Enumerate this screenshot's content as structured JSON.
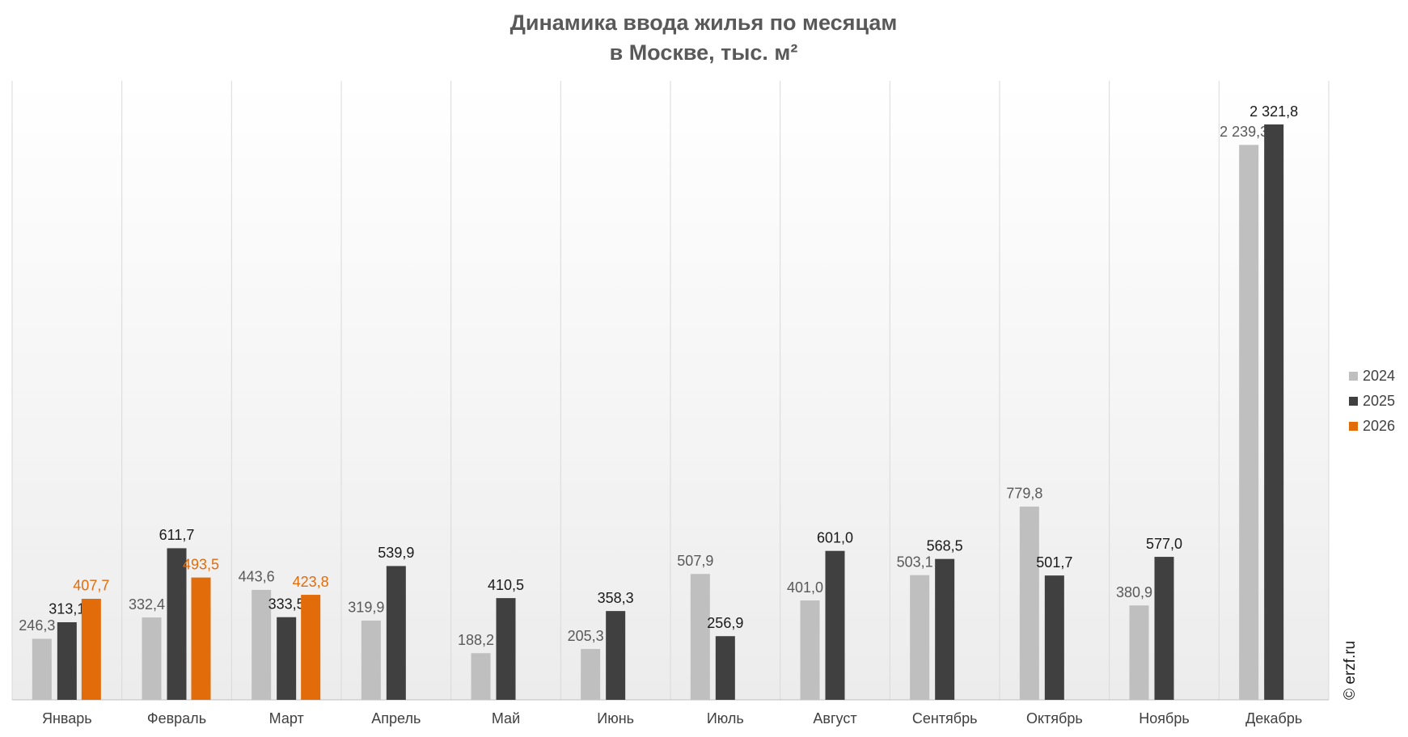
{
  "chart_data": {
    "type": "bar",
    "title": [
      "Динамика ввода жилья по месяцам",
      "в Москве, тыс. м²"
    ],
    "categories": [
      "Январь",
      "Февраль",
      "Март",
      "Апрель",
      "Май",
      "Июнь",
      "Июль",
      "Август",
      "Сентябрь",
      "Октябрь",
      "Ноябрь",
      "Декабрь"
    ],
    "series": [
      {
        "name": "2024",
        "color": "#bfbfbf",
        "label_color": "#595959",
        "values": [
          246.3,
          332.4,
          443.6,
          319.9,
          188.2,
          205.3,
          507.9,
          401.0,
          503.1,
          779.8,
          380.9,
          2239.3
        ],
        "value_labels": [
          "246,3",
          "332,4",
          "443,6",
          "319,9",
          "188,2",
          "205,3",
          "507,9",
          "401,0",
          "503,1",
          "779,8",
          "380,9",
          "2 239,3"
        ]
      },
      {
        "name": "2025",
        "color": "#404040",
        "label_color": "#1a1a1a",
        "values": [
          313.1,
          611.7,
          333.5,
          539.9,
          410.5,
          358.3,
          256.9,
          601.0,
          568.5,
          501.7,
          577.0,
          2321.8
        ],
        "value_labels": [
          "313,1",
          "611,7",
          "333,5",
          "539,9",
          "410,5",
          "358,3",
          "256,9",
          "601,0",
          "568,5",
          "501,7",
          "577,0",
          "2 321,8"
        ]
      },
      {
        "name": "2026",
        "color": "#e36c0a",
        "label_color": "#e36c0a",
        "values": [
          407.7,
          493.5,
          423.8,
          null,
          null,
          null,
          null,
          null,
          null,
          null,
          null,
          null
        ],
        "value_labels": [
          "407,7",
          "493,5",
          "423,8",
          null,
          null,
          null,
          null,
          null,
          null,
          null,
          null,
          null
        ]
      }
    ],
    "legend": "right",
    "watermark": "© erzf.ru"
  }
}
